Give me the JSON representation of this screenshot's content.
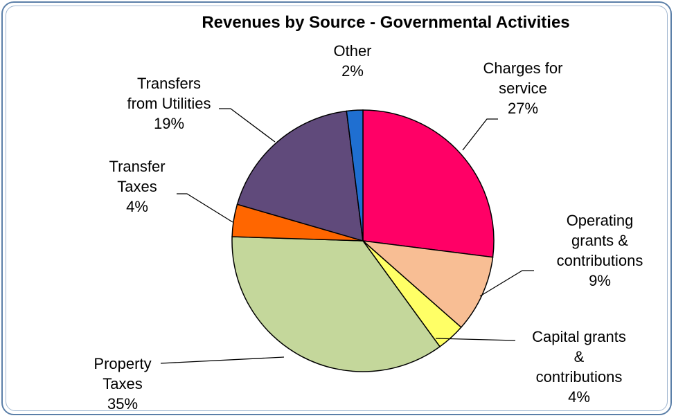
{
  "chart_data": {
    "type": "pie",
    "title": "Revenues by Source - Governmental Activities",
    "slices": [
      {
        "label_lines": [
          "Charges for",
          "service"
        ],
        "percent_text": "27%",
        "value": 27,
        "color": "#ff0066"
      },
      {
        "label_lines": [
          "Operating",
          "grants &",
          "contributions"
        ],
        "percent_text": "9%",
        "value": 9.5,
        "color": "#f8be94"
      },
      {
        "label_lines": [
          "Capital grants",
          "&",
          "contributions"
        ],
        "percent_text": "4%",
        "value": 3.5,
        "color": "#ffff66"
      },
      {
        "label_lines": [
          "Property",
          "Taxes"
        ],
        "percent_text": "35%",
        "value": 35.5,
        "color": "#c4d79b"
      },
      {
        "label_lines": [
          "Transfer",
          "Taxes"
        ],
        "percent_text": "4%",
        "value": 4,
        "color": "#ff6600"
      },
      {
        "label_lines": [
          "Transfers",
          "from Utilities"
        ],
        "percent_text": "19%",
        "value": 18.5,
        "color": "#604a7b"
      },
      {
        "label_lines": [
          "Other"
        ],
        "percent_text": "2%",
        "value": 2,
        "color": "#1f6fd1"
      }
    ],
    "legend": "none",
    "data_labels": "outside with leader lines"
  }
}
